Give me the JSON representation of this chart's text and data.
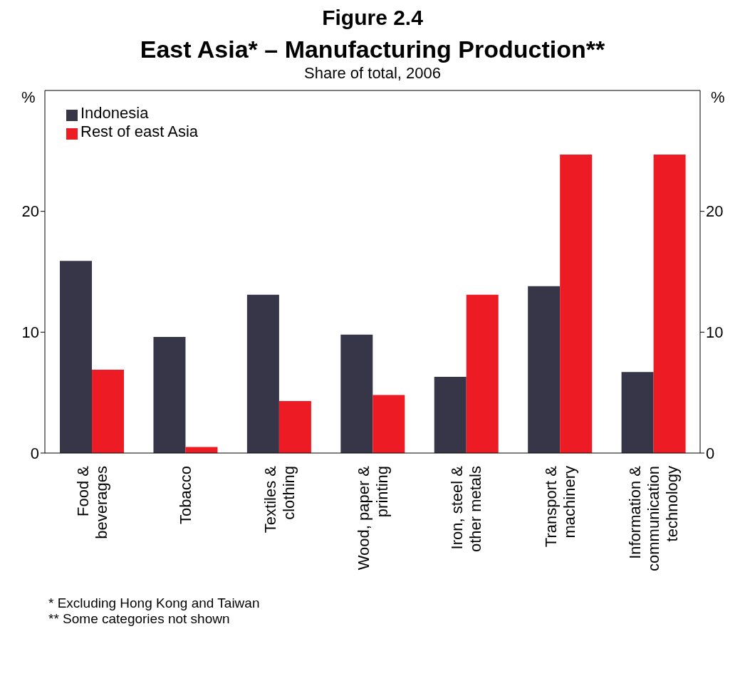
{
  "chart_data": {
    "type": "bar",
    "title": "East Asia* – Manufacturing Production**",
    "subtitle": "Share of total, 2006",
    "annotations": [
      "Figure 2.4",
      "*    Excluding Hong Kong and Taiwan",
      "**    Some categories not shown"
    ],
    "categories": [
      "Food & beverages",
      "Tobacco",
      "Textiles & clothing",
      "Wood, paper & printing",
      "Iron, steel & other metals",
      "Transport & machinery",
      "Information & communication technology"
    ],
    "series": [
      {
        "name": "Indonesia",
        "color": "#363648",
        "values": [
          15.9,
          9.6,
          13.1,
          9.8,
          6.3,
          13.8,
          6.7
        ]
      },
      {
        "name": "Rest of east Asia",
        "color": "#ed1c24",
        "values": [
          6.9,
          0.5,
          4.3,
          4.8,
          13.1,
          24.7,
          24.7
        ]
      }
    ],
    "ylabel": "%",
    "y2label": "%",
    "ylim": [
      0,
      30
    ],
    "yticks": [
      0,
      10,
      20
    ],
    "y2lim": [
      0,
      30
    ],
    "y2ticks": [
      0,
      10,
      20
    ],
    "grid": false,
    "legend": "top left"
  }
}
